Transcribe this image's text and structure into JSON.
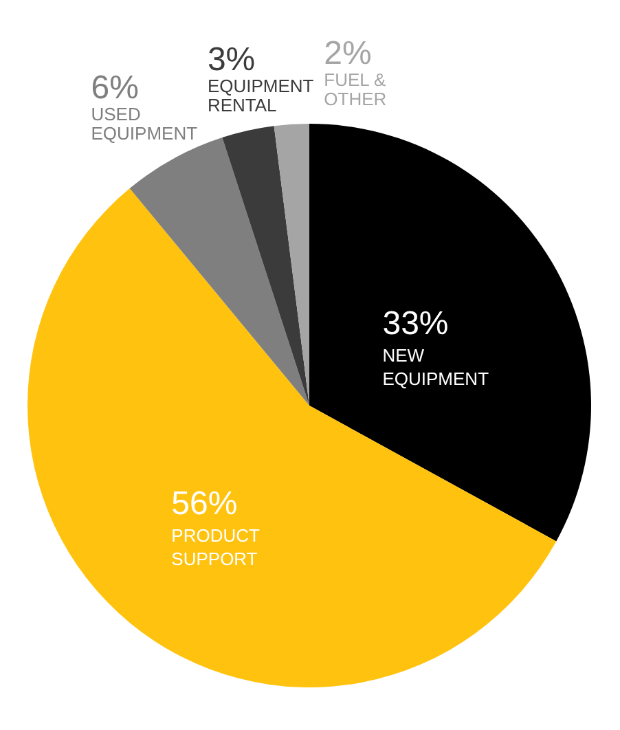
{
  "chart_data": {
    "type": "pie",
    "categories": [
      "NEW EQUIPMENT",
      "PRODUCT SUPPORT",
      "USED EQUIPMENT",
      "EQUIPMENT RENTAL",
      "FUEL & OTHER"
    ],
    "values": [
      33,
      56,
      6,
      3,
      2
    ],
    "colors": [
      "#000000",
      "#ffc20e",
      "#7f7f7f",
      "#3b3b3b",
      "#a5a5a5"
    ],
    "value_labels": [
      "33%",
      "56%",
      "6%",
      "3%",
      "2%"
    ]
  }
}
